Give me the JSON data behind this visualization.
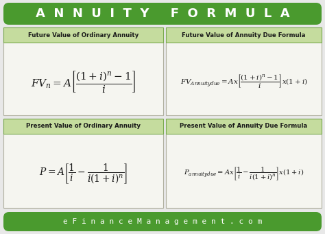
{
  "title": "A  N  N  U  I  T  Y     F  O  R  M  U  L  A",
  "title_bg_top": "#6ec04a",
  "title_bg_bot": "#4a9a2e",
  "title_color": "white",
  "footer_text": "e F i n a n c e M a n a g e m e n t . c o m",
  "footer_bg_top": "#8ccc60",
  "footer_bg_bot": "#4a9a2e",
  "footer_color": "white",
  "bg_color": "#e8e8e8",
  "panel_bg": "#f5f5f0",
  "panel_border": "#b0b0a0",
  "label_bg": "#c5dc9e",
  "label_border": "#7aaa50",
  "label_color": "#1a1a1a",
  "formula_color": "#1a1a1a",
  "labels": [
    "Future Value of Ordinary Annuity",
    "Future Value of Annuity Due Formula",
    "Present Value of Ordinary Annuity",
    "Present Value of Annuity Due Formula"
  ],
  "formula1": "$FV_n = A\\left[\\dfrac{(1+i)^n - 1}{i}\\right]$",
  "formula2": "$FV_{Annuitydue} = Ax\\left[\\dfrac{(1+i)^n - 1}{i}\\right]x(1+i)$",
  "formula3": "$P = A\\left[\\dfrac{1}{i} - \\dfrac{1}{i(1+i)^n}\\right]$",
  "formula4": "$P_{annuitydue} = Ax\\left[\\dfrac{1}{i} - \\dfrac{1}{i(1+i)^n}\\right]x(1+i)$"
}
